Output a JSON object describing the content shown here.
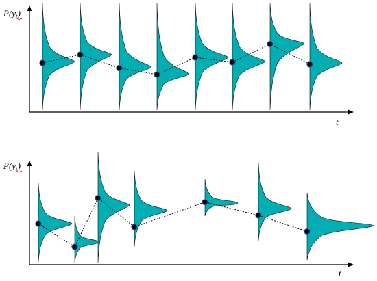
{
  "colors": {
    "fill": "#00aeb3",
    "axis": "#000000",
    "point": "#0a0a14"
  },
  "panels": [
    {
      "name": "top",
      "ylabel": {
        "main": "P(y",
        "sub": "t",
        "close": ")"
      },
      "xlabel": "t",
      "points": [
        {
          "x": 0,
          "y": 0.0
        },
        {
          "x": 1,
          "y": 0.24
        },
        {
          "x": 2,
          "y": -0.15
        },
        {
          "x": 3,
          "y": -0.34
        },
        {
          "x": 4,
          "y": 0.16
        },
        {
          "x": 5,
          "y": 0.02
        },
        {
          "x": 6,
          "y": 0.55
        },
        {
          "x": 7,
          "y": -0.04
        }
      ]
    },
    {
      "name": "bottom",
      "ylabel": {
        "main": "P(y",
        "sub": "t",
        "close": ")"
      },
      "xlabel": "t",
      "points": [
        {
          "x": 0,
          "y": 0.0
        },
        {
          "x": 1,
          "y": -0.62
        },
        {
          "x": 2,
          "y": 0.68
        },
        {
          "x": 3,
          "y": -0.09
        },
        {
          "x": 4,
          "y": 0.57
        },
        {
          "x": 5,
          "y": 0.22
        },
        {
          "x": 6,
          "y": -0.21
        }
      ]
    }
  ]
}
